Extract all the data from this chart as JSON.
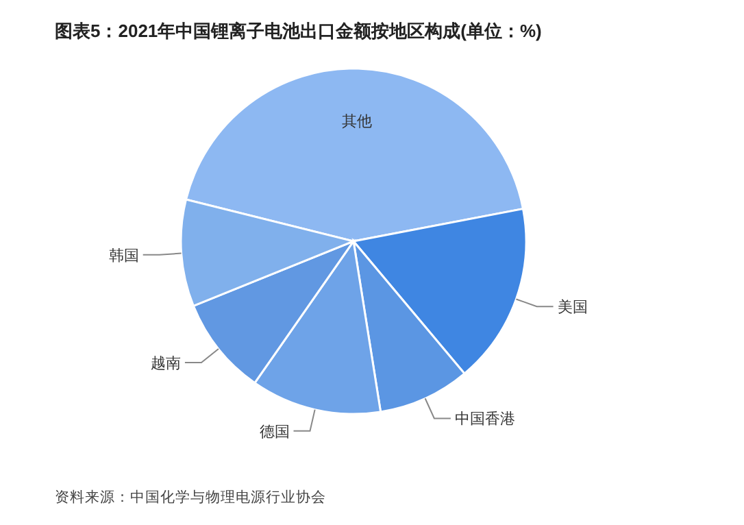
{
  "chart_data": {
    "type": "pie",
    "title": "图表5：2021年中国锂离子电池出口金额按地区构成(单位：%)",
    "categories": [
      "其他",
      "美国",
      "中国香港",
      "德国",
      "越南",
      "韩国"
    ],
    "values": [
      43.1,
      16.9,
      8.6,
      12.2,
      9.2,
      10.0
    ],
    "colors": [
      "#8db8f2",
      "#3f86e2",
      "#5b96e3",
      "#6ea3e8",
      "#6198e2",
      "#80b0ec"
    ],
    "annotations": [
      "资料来源：中国化学与物理电源行业协会"
    ]
  }
}
